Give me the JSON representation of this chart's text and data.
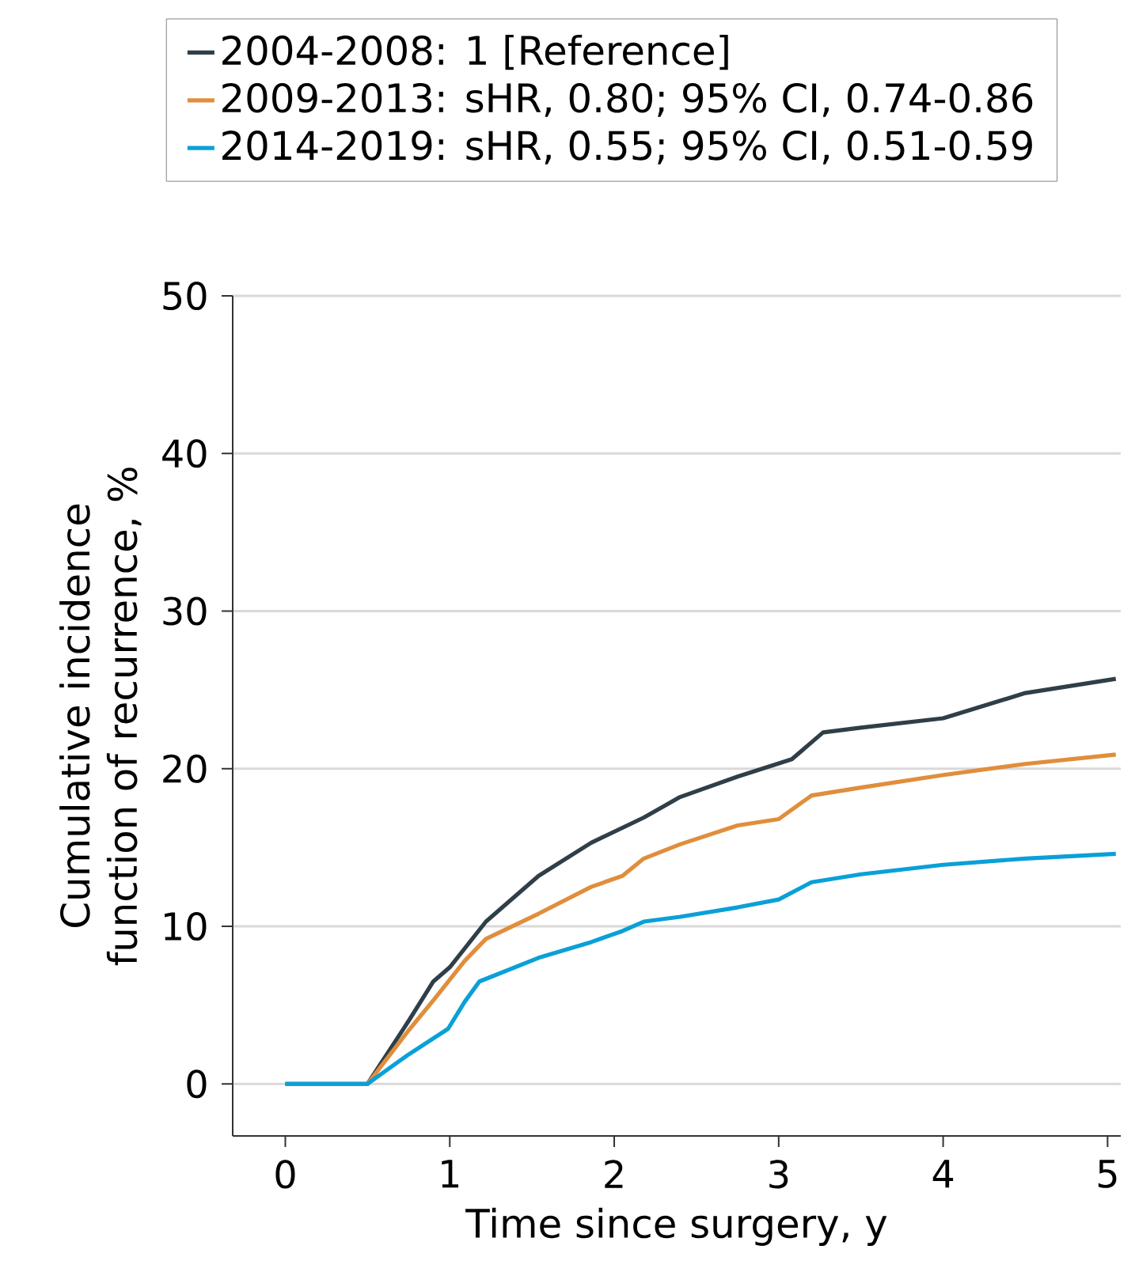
{
  "chart_data": {
    "type": "line",
    "xlabel": "Time since surgery, y",
    "ylabel": "Cumulative incidence function of recurrence, %",
    "xlim": [
      -0.32,
      5.08
    ],
    "ylim": [
      -3.3,
      50
    ],
    "xticks": [
      0,
      1,
      2,
      3,
      4,
      5
    ],
    "yticks": [
      0,
      10,
      20,
      30,
      40,
      50
    ],
    "grid": "y",
    "legend": "top",
    "series": [
      {
        "name": "2004-2008: 1 [Reference]",
        "color": "#2f3f48",
        "x": [
          0,
          0.5,
          0.75,
          0.9,
          1.0,
          1.22,
          1.54,
          1.86,
          2.18,
          2.4,
          2.75,
          3.08,
          3.27,
          3.5,
          4.0,
          4.5,
          5.05
        ],
        "values": [
          0,
          0,
          4.0,
          6.5,
          7.4,
          10.3,
          13.2,
          15.3,
          16.9,
          18.2,
          19.5,
          20.6,
          22.3,
          22.6,
          23.2,
          24.8,
          25.7
        ]
      },
      {
        "name": "2009-2013: sHR, 0.80; 95% CI, 0.74-0.86",
        "color": "#e08e3c",
        "x": [
          0,
          0.5,
          0.75,
          0.9,
          1.09,
          1.22,
          1.54,
          1.86,
          2.05,
          2.18,
          2.4,
          2.75,
          3.0,
          3.2,
          3.5,
          4.0,
          4.5,
          5.05
        ],
        "values": [
          0,
          0,
          3.4,
          5.3,
          7.8,
          9.2,
          10.8,
          12.5,
          13.2,
          14.3,
          15.2,
          16.4,
          16.8,
          18.3,
          18.8,
          19.6,
          20.3,
          20.9
        ]
      },
      {
        "name": "2014-2019: sHR, 0.55; 95% CI, 0.51-0.59",
        "color": "#0aa0d8",
        "x": [
          0,
          0.5,
          0.74,
          0.99,
          1.09,
          1.18,
          1.54,
          1.86,
          2.05,
          2.18,
          2.4,
          2.75,
          3.0,
          3.2,
          3.5,
          4.0,
          4.5,
          5.05
        ],
        "values": [
          0,
          0,
          1.8,
          3.5,
          5.2,
          6.5,
          8.0,
          9.0,
          9.7,
          10.3,
          10.6,
          11.2,
          11.7,
          12.8,
          13.3,
          13.9,
          14.3,
          14.6
        ]
      }
    ]
  }
}
